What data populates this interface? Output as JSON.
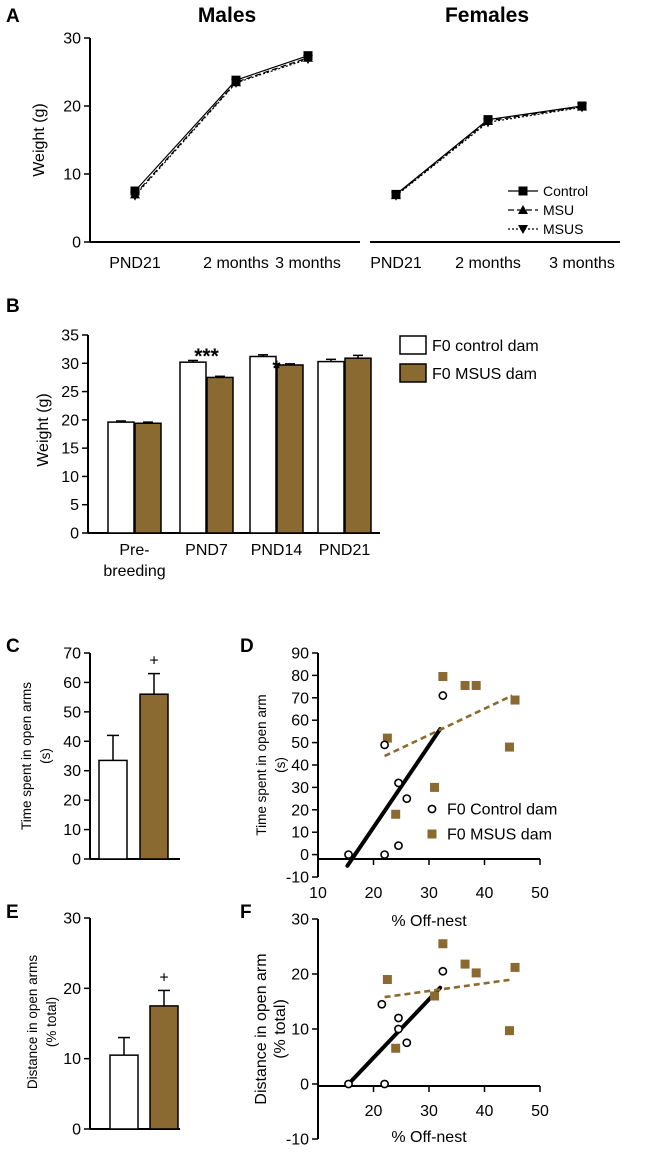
{
  "colors": {
    "brown": "#8b6a31",
    "black": "#000000",
    "white": "#ffffff"
  },
  "chart_data": [
    {
      "panel": "A",
      "type": "line",
      "title": "Males",
      "categories": [
        "PND21",
        "2 months",
        "3 months"
      ],
      "ylabel": "Weight (g)",
      "ylim": [
        0,
        30
      ],
      "yticks": [
        0,
        10,
        20,
        30
      ],
      "series": [
        {
          "name": "Control",
          "values": [
            7.5,
            23.8,
            27.4
          ]
        },
        {
          "name": "MSU",
          "values": [
            7.0,
            23.5,
            27.1
          ]
        },
        {
          "name": "MSUS",
          "values": [
            6.8,
            23.4,
            26.9
          ]
        }
      ]
    },
    {
      "panel": "A",
      "type": "line",
      "title": "Females",
      "categories": [
        "PND21",
        "2 months",
        "3 months"
      ],
      "ylabel": "Weight (g)",
      "ylim": [
        0,
        30
      ],
      "legend": [
        "Control",
        "MSU",
        "MSUS"
      ],
      "legend_position": "bottom-right",
      "series": [
        {
          "name": "Control",
          "values": [
            7.0,
            18.0,
            20.0
          ]
        },
        {
          "name": "MSU",
          "values": [
            6.9,
            17.8,
            19.9
          ]
        },
        {
          "name": "MSUS",
          "values": [
            6.8,
            17.6,
            19.8
          ]
        }
      ]
    },
    {
      "panel": "B",
      "type": "bar",
      "categories": [
        "Pre-breeding",
        "PND7",
        "PND14",
        "PND21"
      ],
      "category_lines": [
        [
          "Pre-",
          "breeding"
        ],
        [
          "PND7"
        ],
        [
          "PND14"
        ],
        [
          "PND21"
        ]
      ],
      "ylabel": "Weight (g)",
      "ylim": [
        0,
        35
      ],
      "yticks": [
        0,
        5,
        10,
        15,
        20,
        25,
        30,
        35
      ],
      "legend": [
        "F0 control dam",
        "F0 MSUS dam"
      ],
      "legend_position": "top-right",
      "series": [
        {
          "name": "F0 control dam",
          "values": [
            19.6,
            30.2,
            31.2,
            30.3
          ],
          "errors": [
            0.2,
            0.3,
            0.3,
            0.4
          ]
        },
        {
          "name": "F0 MSUS dam",
          "values": [
            19.4,
            27.5,
            29.7,
            30.9
          ],
          "errors": [
            0.2,
            0.2,
            0.2,
            0.5
          ]
        }
      ],
      "annotations": [
        {
          "category": "PND7",
          "text": "***"
        },
        {
          "category": "PND14",
          "text": "*"
        }
      ]
    },
    {
      "panel": "C",
      "type": "bar",
      "ylabel": [
        "Time spent in open arms",
        "(s)"
      ],
      "ylim": [
        0,
        70
      ],
      "yticks": [
        0,
        10,
        20,
        30,
        40,
        50,
        60,
        70
      ],
      "series": [
        {
          "name": "F0 control dam",
          "value": 33.5,
          "error": 8.5
        },
        {
          "name": "F0 MSUS dam",
          "value": 56,
          "error": 7
        }
      ],
      "annotation": "+"
    },
    {
      "panel": "D",
      "type": "scatter",
      "xlabel": "% Off-nest",
      "ylabel": [
        "Time spent in open arm",
        "(s)"
      ],
      "xlim": [
        10,
        50
      ],
      "xticks": [
        10,
        20,
        30,
        40,
        50
      ],
      "ylim": [
        -10,
        90
      ],
      "yticks": [
        -10,
        0,
        10,
        20,
        30,
        40,
        50,
        60,
        70,
        80,
        90
      ],
      "legend": [
        "F0 Control dam",
        "F0 MSUS dam"
      ],
      "legend_position": "bottom-right",
      "series": [
        {
          "name": "F0 Control dam",
          "points": [
            [
              15.5,
              0
            ],
            [
              22,
              0
            ],
            [
              22,
              49
            ],
            [
              24.5,
              32
            ],
            [
              24.5,
              4
            ],
            [
              26,
              25
            ],
            [
              32.5,
              71
            ]
          ],
          "fit": [
            [
              15.3,
              -5
            ],
            [
              32,
              56
            ]
          ]
        },
        {
          "name": "F0 MSUS dam",
          "points": [
            [
              22.5,
              52
            ],
            [
              24,
              18
            ],
            [
              31,
              30
            ],
            [
              32.5,
              79.5
            ],
            [
              36.5,
              75.5
            ],
            [
              38.5,
              75.5
            ],
            [
              44.5,
              48
            ],
            [
              45.5,
              69
            ]
          ],
          "fit": [
            [
              22,
              44
            ],
            [
              45,
              71
            ]
          ]
        }
      ]
    },
    {
      "panel": "E",
      "type": "bar",
      "ylabel": [
        "Distance in open arms",
        "(% total)"
      ],
      "ylim": [
        0,
        30
      ],
      "yticks": [
        0,
        10,
        20,
        30
      ],
      "series": [
        {
          "name": "F0 control dam",
          "value": 10.5,
          "error": 2.5
        },
        {
          "name": "F0 MSUS dam",
          "value": 17.5,
          "error": 2.2
        }
      ],
      "annotation": "+"
    },
    {
      "panel": "F",
      "type": "scatter",
      "xlabel": "% Off-nest",
      "ylabel": [
        "Distance in open arm",
        "(% total)"
      ],
      "xlim": [
        10,
        50
      ],
      "xticks": [
        20,
        30,
        40,
        50
      ],
      "ylim": [
        -10,
        30
      ],
      "yticks": [
        -10,
        0,
        10,
        20,
        30
      ],
      "series": [
        {
          "name": "F0 Control dam",
          "points": [
            [
              15.5,
              0
            ],
            [
              21.5,
              14.5
            ],
            [
              22,
              0
            ],
            [
              24.5,
              12
            ],
            [
              24.5,
              10
            ],
            [
              26,
              7.5
            ],
            [
              32.5,
              20.5
            ]
          ],
          "fit": [
            [
              15.5,
              0
            ],
            [
              32,
              17.5
            ]
          ]
        },
        {
          "name": "F0 MSUS dam",
          "points": [
            [
              22.5,
              19
            ],
            [
              24,
              6.5
            ],
            [
              31,
              16
            ],
            [
              32.5,
              25.5
            ],
            [
              36.5,
              21.8
            ],
            [
              38.5,
              20.2
            ],
            [
              44.5,
              9.7
            ],
            [
              45.5,
              21.2
            ]
          ],
          "fit": [
            [
              22,
              15.8
            ],
            [
              45,
              19
            ]
          ]
        }
      ]
    }
  ]
}
